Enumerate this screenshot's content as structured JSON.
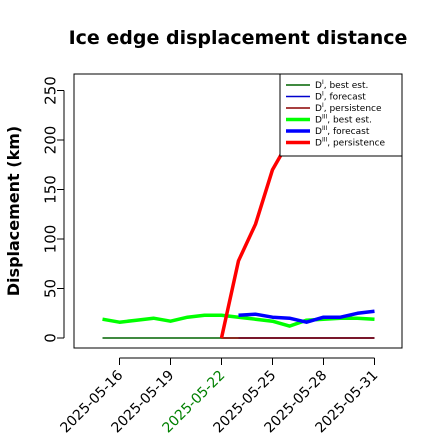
{
  "chart_data": {
    "type": "line",
    "title": "Ice edge displacement distance",
    "ylabel": "Displacement (km)",
    "xlabel": "",
    "ylim": [
      0,
      260
    ],
    "xlim": [
      "2025-05-13",
      "2025-06-01"
    ],
    "yticks": [
      0,
      50,
      100,
      150,
      200,
      250
    ],
    "xticks": [
      {
        "date": "2025-05-16",
        "label": "2025-05-16",
        "color": "#000000"
      },
      {
        "date": "2025-05-19",
        "label": "2025-05-19",
        "color": "#000000"
      },
      {
        "date": "2025-05-22",
        "label": "2025-05-22",
        "color": "#008000"
      },
      {
        "date": "2025-05-25",
        "label": "2025-05-25",
        "color": "#000000"
      },
      {
        "date": "2025-05-28",
        "label": "2025-05-28",
        "color": "#000000"
      },
      {
        "date": "2025-05-31",
        "label": "2025-05-31",
        "color": "#000000"
      }
    ],
    "grid": false,
    "legend_position": "top-right",
    "series": [
      {
        "key": "dI_best",
        "name_main": "D",
        "name_sup": "I",
        "name_rest": ", best est.",
        "color": "#006400",
        "width": 1.4,
        "x": [
          "2025-05-15",
          "2025-05-16",
          "2025-05-17",
          "2025-05-18",
          "2025-05-19",
          "2025-05-20",
          "2025-05-21",
          "2025-05-22",
          "2025-05-23",
          "2025-05-24",
          "2025-05-25",
          "2025-05-26",
          "2025-05-27",
          "2025-05-28",
          "2025-05-29",
          "2025-05-30",
          "2025-05-31"
        ],
        "values": [
          0,
          0,
          0,
          0,
          0,
          0,
          0,
          0,
          0,
          0,
          0,
          0,
          0,
          0,
          0,
          0,
          0
        ]
      },
      {
        "key": "dI_forecast",
        "name_main": "D",
        "name_sup": "I",
        "name_rest": ", forecast",
        "color": "#0000cd",
        "width": 1.4,
        "x": [
          "2025-05-23",
          "2025-05-24",
          "2025-05-25",
          "2025-05-26",
          "2025-05-27",
          "2025-05-28",
          "2025-05-29",
          "2025-05-30",
          "2025-05-31"
        ],
        "values": [
          0,
          0,
          0,
          0,
          0,
          0,
          0,
          0,
          0
        ]
      },
      {
        "key": "dI_persistence",
        "name_main": "D",
        "name_sup": "I",
        "name_rest": ", persistence",
        "color": "#8b0000",
        "width": 1.4,
        "x": [
          "2025-05-22",
          "2025-05-23",
          "2025-05-24",
          "2025-05-25",
          "2025-05-26",
          "2025-05-27",
          "2025-05-28",
          "2025-05-29",
          "2025-05-30",
          "2025-05-31"
        ],
        "values": [
          0,
          0,
          0,
          0,
          0,
          0,
          0,
          0,
          0,
          0
        ]
      },
      {
        "key": "dIII_best",
        "name_main": "D",
        "name_sup": "III",
        "name_rest": ", best est.",
        "color": "#00ff00",
        "width": 3.5,
        "x": [
          "2025-05-15",
          "2025-05-16",
          "2025-05-17",
          "2025-05-18",
          "2025-05-19",
          "2025-05-20",
          "2025-05-21",
          "2025-05-22",
          "2025-05-23",
          "2025-05-24",
          "2025-05-25",
          "2025-05-26",
          "2025-05-27",
          "2025-05-28",
          "2025-05-29",
          "2025-05-30",
          "2025-05-31"
        ],
        "values": [
          19,
          16,
          18,
          20,
          17,
          21,
          23,
          23,
          21,
          19,
          17,
          12,
          18,
          19,
          20,
          20,
          19
        ]
      },
      {
        "key": "dIII_forecast",
        "name_main": "D",
        "name_sup": "III",
        "name_rest": ", forecast",
        "color": "#0000ff",
        "width": 3.5,
        "x": [
          "2025-05-23",
          "2025-05-24",
          "2025-05-25",
          "2025-05-26",
          "2025-05-27",
          "2025-05-28",
          "2025-05-29",
          "2025-05-30",
          "2025-05-31"
        ],
        "values": [
          23,
          24,
          21,
          20,
          16,
          21,
          21,
          25,
          27
        ]
      },
      {
        "key": "dIII_persistence",
        "name_main": "D",
        "name_sup": "III",
        "name_rest": ", persistence",
        "color": "#ff0000",
        "width": 3.5,
        "x": [
          "2025-05-22",
          "2025-05-23",
          "2025-05-24",
          "2025-05-25",
          "2025-05-26",
          "2025-05-27",
          "2025-05-28",
          "2025-05-29",
          "2025-05-30",
          "2025-05-31"
        ],
        "values": [
          0,
          78,
          115,
          170,
          200,
          220,
          232,
          242,
          252,
          258
        ]
      }
    ]
  }
}
